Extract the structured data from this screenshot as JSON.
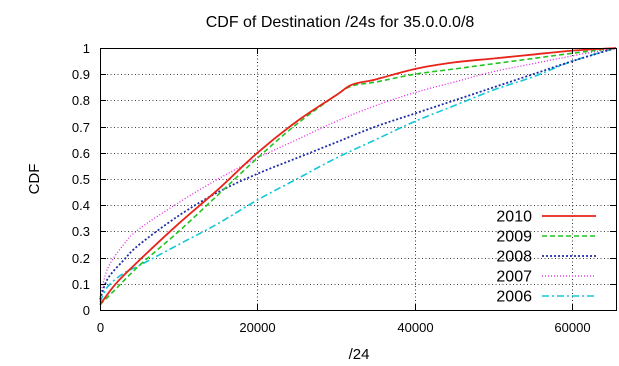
{
  "chart_data": {
    "type": "line",
    "title": "CDF of Destination /24s for 35.0.0.0/8",
    "xlabel": "/24",
    "ylabel": "CDF",
    "xlim": [
      0,
      65536
    ],
    "ylim": [
      0,
      1
    ],
    "xticks": [
      0,
      20000,
      40000,
      60000
    ],
    "xtick_labels": [
      "0",
      "20000",
      "40000",
      "60000"
    ],
    "yticks": [
      0,
      0.1,
      0.2,
      0.3,
      0.4,
      0.5,
      0.6,
      0.7,
      0.8,
      0.9,
      1
    ],
    "ytick_labels": [
      "0",
      "0.1",
      "0.2",
      "0.3",
      "0.4",
      "0.5",
      "0.6",
      "0.7",
      "0.8",
      "0.9",
      "1"
    ],
    "grid": true,
    "legend_position": "bottom-right",
    "series": [
      {
        "name": "2010",
        "color": "#e8231a",
        "dash": "solid",
        "x": [
          0,
          2000,
          5000,
          10000,
          15000,
          20000,
          25000,
          30000,
          32000,
          35000,
          40000,
          45000,
          50000,
          55000,
          60000,
          65536
        ],
        "y": [
          0.02,
          0.1,
          0.19,
          0.33,
          0.46,
          0.6,
          0.72,
          0.82,
          0.86,
          0.88,
          0.92,
          0.945,
          0.96,
          0.975,
          0.99,
          1.0
        ]
      },
      {
        "name": "2009",
        "color": "#22c41f",
        "dash": "dashed",
        "x": [
          0,
          2000,
          5000,
          10000,
          15000,
          20000,
          25000,
          30000,
          32000,
          35000,
          40000,
          45000,
          50000,
          55000,
          60000,
          65536
        ],
        "y": [
          0.02,
          0.08,
          0.17,
          0.3,
          0.44,
          0.58,
          0.71,
          0.82,
          0.855,
          0.87,
          0.9,
          0.92,
          0.94,
          0.96,
          0.98,
          1.0
        ]
      },
      {
        "name": "2008",
        "color": "#1f2ea8",
        "dash": "dotted",
        "x": [
          0,
          1000,
          3000,
          5000,
          10000,
          15000,
          20000,
          25000,
          30000,
          35000,
          40000,
          45000,
          50000,
          55000,
          60000,
          65536
        ],
        "y": [
          0.04,
          0.12,
          0.19,
          0.25,
          0.36,
          0.45,
          0.52,
          0.58,
          0.64,
          0.7,
          0.75,
          0.8,
          0.85,
          0.9,
          0.95,
          1.0
        ]
      },
      {
        "name": "2007",
        "color": "#e61fe6",
        "dash": "dotted-fine",
        "x": [
          0,
          1000,
          3000,
          5000,
          10000,
          15000,
          20000,
          25000,
          30000,
          35000,
          40000,
          45000,
          50000,
          55000,
          60000,
          65536
        ],
        "y": [
          0.05,
          0.16,
          0.25,
          0.31,
          0.41,
          0.5,
          0.58,
          0.65,
          0.72,
          0.78,
          0.83,
          0.87,
          0.91,
          0.94,
          0.97,
          1.0
        ]
      },
      {
        "name": "2006",
        "color": "#12c7d6",
        "dash": "dash-dot",
        "x": [
          0,
          1000,
          3000,
          5000,
          10000,
          15000,
          20000,
          25000,
          30000,
          35000,
          40000,
          45000,
          50000,
          55000,
          60000,
          65536
        ],
        "y": [
          0.03,
          0.09,
          0.14,
          0.17,
          0.25,
          0.33,
          0.42,
          0.5,
          0.58,
          0.65,
          0.72,
          0.78,
          0.84,
          0.89,
          0.95,
          1.0
        ]
      }
    ]
  }
}
